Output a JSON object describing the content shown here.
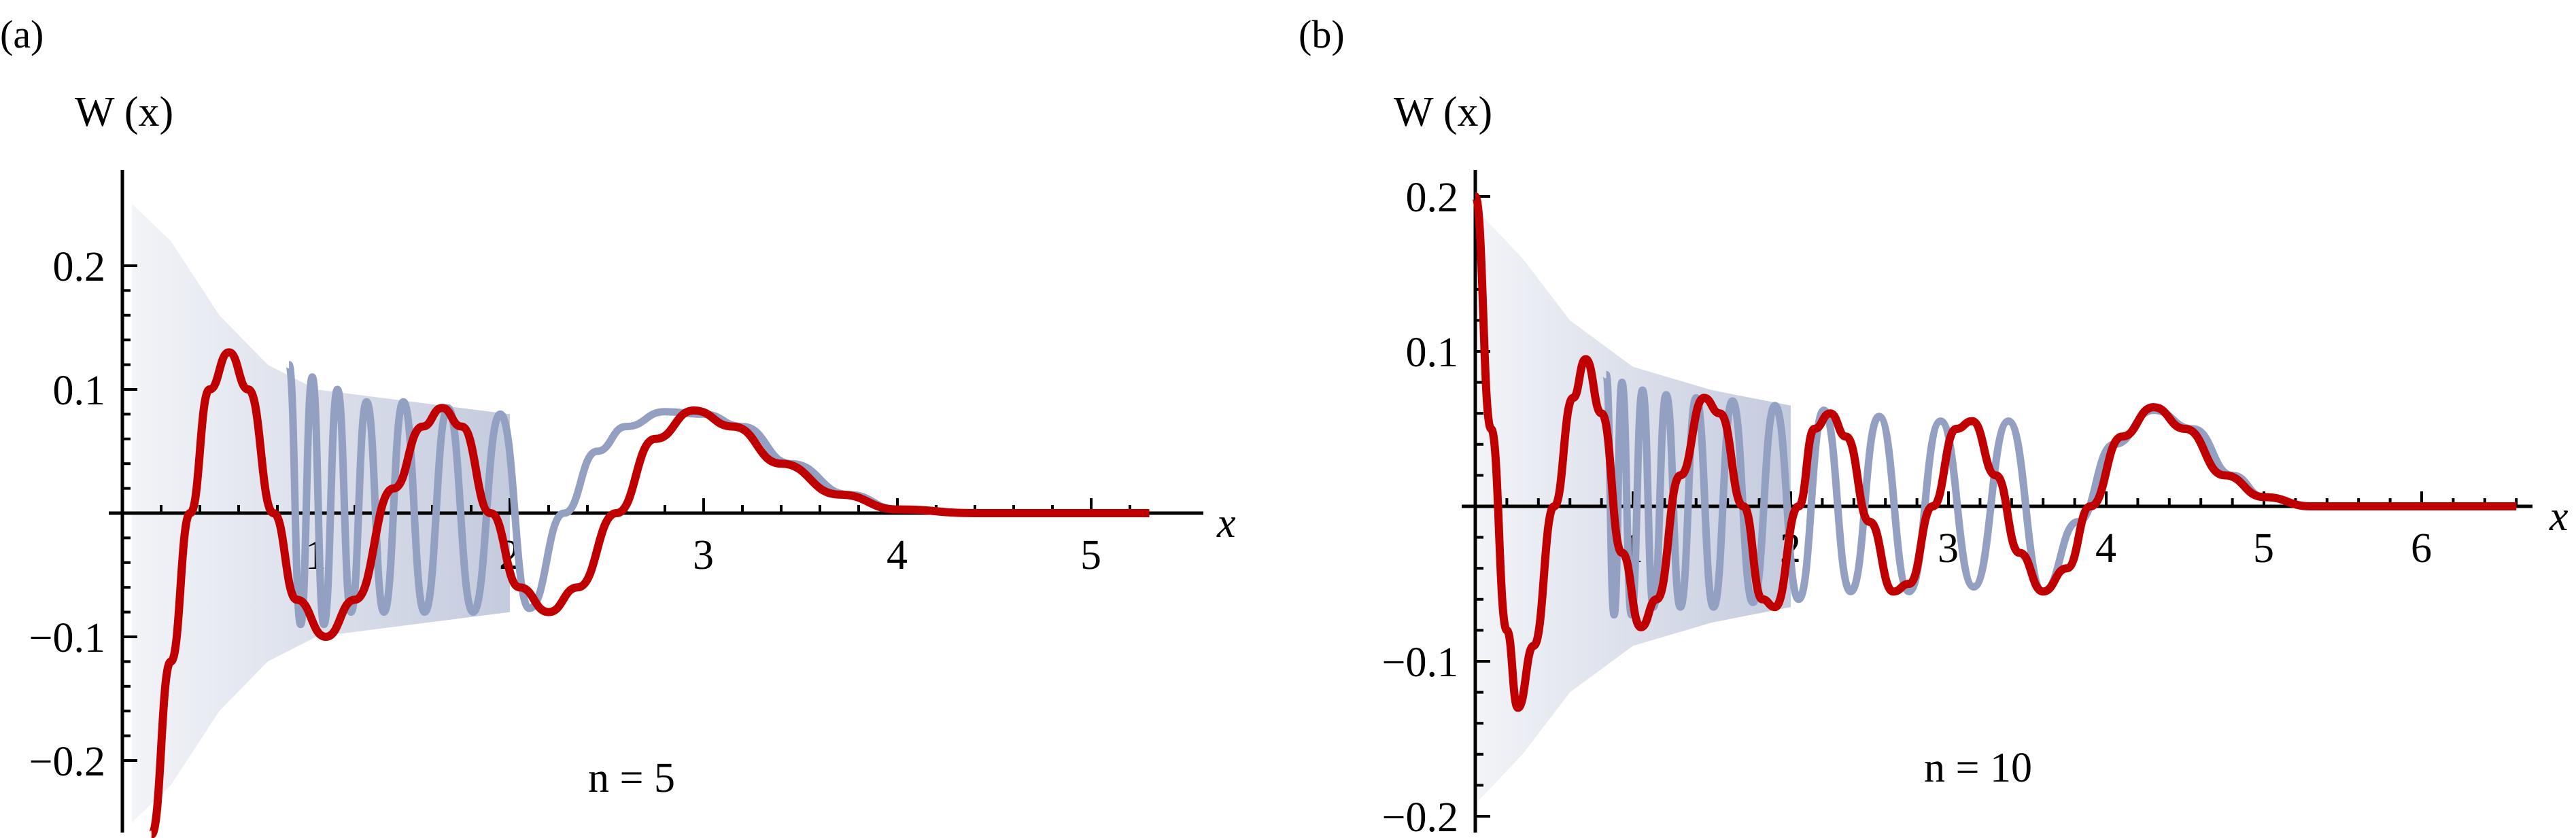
{
  "colors": {
    "exact": "#c00000",
    "approx": "#93a0c2",
    "axis": "#000000"
  },
  "panels": [
    {
      "tag": "(a)",
      "ylabel": "W (x)",
      "xlabel": "x",
      "annotation": "n = 5"
    },
    {
      "tag": "(b)",
      "ylabel": "W (x)",
      "xlabel": "x",
      "annotation": "n = 10"
    }
  ],
  "chart_data": [
    {
      "type": "line",
      "panel": "(a)",
      "xlabel": "x",
      "ylabel": "W(x)",
      "annotation": "n = 5",
      "xlim": [
        0,
        5.3
      ],
      "ylim": [
        -0.26,
        0.27
      ],
      "xticks": [
        1,
        2,
        3,
        4,
        5
      ],
      "xtick_labels": [
        "1",
        "2",
        "3",
        "4",
        "5"
      ],
      "yticks": [
        -0.2,
        -0.1,
        0.1,
        0.2
      ],
      "ytick_labels": [
        "−0.2",
        "−0.1",
        "0.1",
        "0.2"
      ],
      "grid": false,
      "series": [
        {
          "role": "exact",
          "points": [
            [
              0.15,
              -0.26
            ],
            [
              0.25,
              -0.12
            ],
            [
              0.35,
              0.0
            ],
            [
              0.45,
              0.1
            ],
            [
              0.55,
              0.13
            ],
            [
              0.65,
              0.1
            ],
            [
              0.78,
              0.0
            ],
            [
              0.9,
              -0.07
            ],
            [
              1.05,
              -0.1
            ],
            [
              1.2,
              -0.07
            ],
            [
              1.4,
              0.02
            ],
            [
              1.55,
              0.07
            ],
            [
              1.65,
              0.085
            ],
            [
              1.75,
              0.07
            ],
            [
              1.9,
              0.0
            ],
            [
              2.05,
              -0.06
            ],
            [
              2.2,
              -0.08
            ],
            [
              2.35,
              -0.06
            ],
            [
              2.55,
              0.0
            ],
            [
              2.75,
              0.06
            ],
            [
              2.95,
              0.083
            ],
            [
              3.15,
              0.07
            ],
            [
              3.4,
              0.04
            ],
            [
              3.7,
              0.015
            ],
            [
              4.0,
              0.003
            ],
            [
              4.4,
              0.0
            ],
            [
              5.3,
              0.0
            ]
          ]
        },
        {
          "role": "approx",
          "envelope": [
            [
              0.05,
              0.25
            ],
            [
              0.25,
              0.22
            ],
            [
              0.5,
              0.16
            ],
            [
              0.75,
              0.12
            ],
            [
              1.0,
              0.1
            ],
            [
              1.5,
              0.09
            ],
            [
              2.0,
              0.08
            ]
          ],
          "points": [
            [
              0.86,
              0.12
            ],
            [
              0.92,
              -0.09
            ],
            [
              0.98,
              0.11
            ],
            [
              1.04,
              -0.09
            ],
            [
              1.11,
              0.1
            ],
            [
              1.18,
              -0.08
            ],
            [
              1.26,
              0.09
            ],
            [
              1.35,
              -0.08
            ],
            [
              1.45,
              0.09
            ],
            [
              1.56,
              -0.08
            ],
            [
              1.68,
              0.085
            ],
            [
              1.81,
              -0.08
            ],
            [
              1.95,
              0.08
            ],
            [
              2.1,
              -0.077
            ],
            [
              2.28,
              0.0
            ],
            [
              2.45,
              0.05
            ],
            [
              2.6,
              0.07
            ],
            [
              2.8,
              0.082
            ],
            [
              3.0,
              0.08
            ],
            [
              3.2,
              0.07
            ],
            [
              3.45,
              0.04
            ],
            [
              3.75,
              0.015
            ],
            [
              4.0,
              0.003
            ],
            [
              4.4,
              0.0
            ],
            [
              5.3,
              0.0
            ]
          ]
        }
      ]
    },
    {
      "type": "line",
      "panel": "(b)",
      "xlabel": "x",
      "ylabel": "W(x)",
      "annotation": "n = 10",
      "xlim": [
        0,
        6.6
      ],
      "ylim": [
        -0.2,
        0.21
      ],
      "xticks": [
        1,
        2,
        3,
        4,
        5,
        6
      ],
      "xtick_labels": [
        "1",
        "2",
        "3",
        "4",
        "5",
        "6"
      ],
      "yticks": [
        -0.2,
        -0.1,
        0.1,
        0.2
      ],
      "ytick_labels": [
        "−0.2",
        "−0.1",
        "0.1",
        "0.2"
      ],
      "grid": false,
      "series": [
        {
          "role": "exact",
          "points": [
            [
              0.0,
              0.2
            ],
            [
              0.1,
              0.05
            ],
            [
              0.2,
              -0.08
            ],
            [
              0.27,
              -0.13
            ],
            [
              0.37,
              -0.09
            ],
            [
              0.5,
              0.0
            ],
            [
              0.62,
              0.07
            ],
            [
              0.7,
              0.095
            ],
            [
              0.8,
              0.06
            ],
            [
              0.93,
              -0.03
            ],
            [
              1.05,
              -0.078
            ],
            [
              1.15,
              -0.06
            ],
            [
              1.3,
              0.02
            ],
            [
              1.45,
              0.07
            ],
            [
              1.55,
              0.06
            ],
            [
              1.7,
              0.0
            ],
            [
              1.82,
              -0.06
            ],
            [
              1.9,
              -0.065
            ],
            [
              2.05,
              0.0
            ],
            [
              2.15,
              0.05
            ],
            [
              2.25,
              0.06
            ],
            [
              2.35,
              0.045
            ],
            [
              2.5,
              -0.01
            ],
            [
              2.65,
              -0.055
            ],
            [
              2.75,
              -0.05
            ],
            [
              2.9,
              0.0
            ],
            [
              3.05,
              0.05
            ],
            [
              3.15,
              0.055
            ],
            [
              3.3,
              0.02
            ],
            [
              3.45,
              -0.03
            ],
            [
              3.6,
              -0.055
            ],
            [
              3.75,
              -0.04
            ],
            [
              3.9,
              0.0
            ],
            [
              4.1,
              0.045
            ],
            [
              4.3,
              0.064
            ],
            [
              4.5,
              0.05
            ],
            [
              4.75,
              0.02
            ],
            [
              5.0,
              0.006
            ],
            [
              5.3,
              0.0
            ],
            [
              6.6,
              0.0
            ]
          ]
        },
        {
          "role": "approx",
          "envelope": [
            [
              0.02,
              0.19
            ],
            [
              0.3,
              0.16
            ],
            [
              0.6,
              0.12
            ],
            [
              1.0,
              0.09
            ],
            [
              1.5,
              0.075
            ],
            [
              2.0,
              0.065
            ]
          ],
          "points": [
            [
              0.83,
              0.085
            ],
            [
              0.88,
              -0.07
            ],
            [
              0.93,
              0.08
            ],
            [
              0.99,
              -0.07
            ],
            [
              1.06,
              0.075
            ],
            [
              1.13,
              -0.065
            ],
            [
              1.21,
              0.072
            ],
            [
              1.3,
              -0.065
            ],
            [
              1.4,
              0.07
            ],
            [
              1.51,
              -0.065
            ],
            [
              1.63,
              0.068
            ],
            [
              1.76,
              -0.062
            ],
            [
              1.9,
              0.065
            ],
            [
              2.05,
              -0.06
            ],
            [
              2.21,
              0.062
            ],
            [
              2.38,
              -0.055
            ],
            [
              2.56,
              0.058
            ],
            [
              2.75,
              -0.055
            ],
            [
              2.95,
              0.055
            ],
            [
              3.16,
              -0.052
            ],
            [
              3.38,
              0.055
            ],
            [
              3.6,
              -0.055
            ],
            [
              3.82,
              -0.01
            ],
            [
              4.05,
              0.04
            ],
            [
              4.3,
              0.062
            ],
            [
              4.55,
              0.05
            ],
            [
              4.8,
              0.02
            ],
            [
              5.0,
              0.006
            ],
            [
              5.3,
              0.0
            ],
            [
              6.6,
              0.0
            ]
          ]
        }
      ]
    }
  ]
}
